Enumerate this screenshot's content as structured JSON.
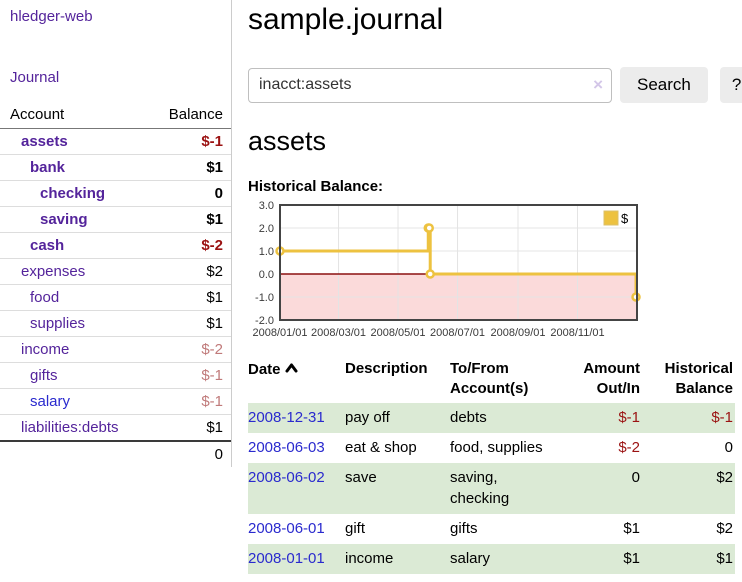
{
  "palette": {
    "link_purple": "#54249b",
    "link_blue": "#2a2ace",
    "negative_dark": "#9b1212",
    "negative_pale": "#c07a7a",
    "row_green": "#dbead5",
    "series_gold": "#edc240"
  },
  "sidebar": {
    "brand": "hledger-web",
    "nav": {
      "journal": "Journal"
    },
    "columns": {
      "account": "Account",
      "balance": "Balance"
    },
    "accounts": [
      {
        "name": "assets",
        "balance": "$-1"
      },
      {
        "name": "bank",
        "balance": "$1"
      },
      {
        "name": "checking",
        "balance": "0"
      },
      {
        "name": "saving",
        "balance": "$1"
      },
      {
        "name": "cash",
        "balance": "$-2"
      },
      {
        "name": "expenses",
        "balance": "$2"
      },
      {
        "name": "food",
        "balance": "$1"
      },
      {
        "name": "supplies",
        "balance": "$1"
      },
      {
        "name": "income",
        "balance": "$-2"
      },
      {
        "name": "gifts",
        "balance": "$-1"
      },
      {
        "name": "salary",
        "balance": "$-1"
      },
      {
        "name": "liabilities:debts",
        "balance": "$1"
      }
    ],
    "total": "0"
  },
  "header": {
    "title": "sample.journal"
  },
  "search": {
    "value": "inacct:assets",
    "clear_icon": "×",
    "button_label": "Search",
    "help_label": "?"
  },
  "account_page": {
    "heading": "assets"
  },
  "chart_data": {
    "type": "line",
    "title": "Historical Balance:",
    "step": true,
    "series": [
      {
        "name": "$",
        "color": "#edc240",
        "points": [
          [
            "2008-01-01",
            1
          ],
          [
            "2008-06-01",
            2
          ],
          [
            "2008-06-02",
            2
          ],
          [
            "2008-06-03",
            0
          ],
          [
            "2008-12-31",
            -1
          ]
        ]
      }
    ],
    "ylim": [
      -2,
      3
    ],
    "yticks": [
      3.0,
      2.0,
      1.0,
      0.0,
      -1.0,
      -2.0
    ],
    "xticks": [
      "2008/01/01",
      "2008/03/01",
      "2008/05/01",
      "2008/07/01",
      "2008/09/01",
      "2008/11/01"
    ],
    "xrange": [
      "2008-01-01",
      "2009-01-01"
    ],
    "grid": true,
    "negative_fill": "#fbdada",
    "zero_line_color": "#8b1010",
    "legend": {
      "label": "$",
      "position": "top-right"
    }
  },
  "transactions": {
    "headers": {
      "date": "Date",
      "description": "Description",
      "tofrom1": "To/From",
      "tofrom2": "Account(s)",
      "amount1": "Amount",
      "amount2": "Out/In",
      "hist1": "Historical",
      "hist2": "Balance"
    },
    "rows": [
      {
        "date": "2008-12-31",
        "description": "pay off",
        "accounts": "debts",
        "amount": "$-1",
        "historical": "$-1"
      },
      {
        "date": "2008-06-03",
        "description": "eat & shop",
        "accounts": "food, supplies",
        "amount": "$-2",
        "historical": "0"
      },
      {
        "date": "2008-06-02",
        "description": "save",
        "accounts": "saving, checking",
        "amount": "0",
        "historical": "$2"
      },
      {
        "date": "2008-06-01",
        "description": "gift",
        "accounts": "gifts",
        "amount": "$1",
        "historical": "$2"
      },
      {
        "date": "2008-01-01",
        "description": "income",
        "accounts": "salary",
        "amount": "$1",
        "historical": "$1"
      }
    ]
  }
}
